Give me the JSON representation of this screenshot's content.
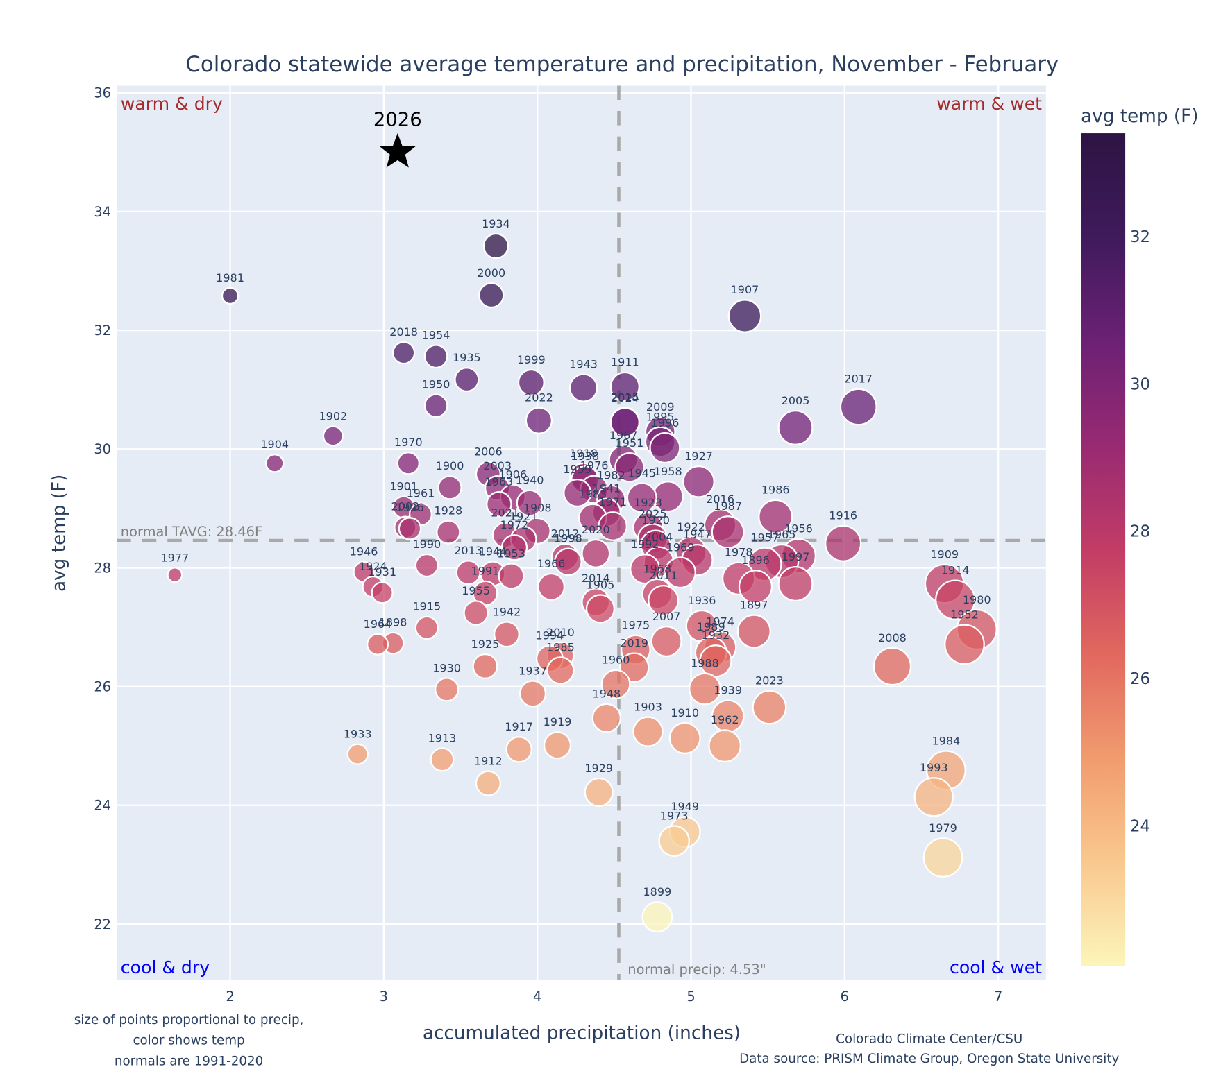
{
  "chart_data": {
    "type": "scatter",
    "title": "Colorado statewide average temperature and precipitation, November - February",
    "xlabel": "accumulated precipitation (inches)",
    "ylabel": "avg temp (F)",
    "xlim": [
      1.27,
      7.31
    ],
    "ylim": [
      21.0,
      36.1
    ],
    "xticks": [
      2,
      3,
      4,
      5,
      6,
      7
    ],
    "yticks": [
      22,
      24,
      26,
      28,
      30,
      32,
      34,
      36
    ],
    "grid": true,
    "size_encoding": "precip",
    "color_encoding": "temp",
    "colorbar": {
      "title": "avg temp (F)",
      "range": [
        22.1,
        33.4
      ],
      "ticks": [
        24,
        26,
        28,
        30,
        32
      ],
      "colorscale": [
        "#fcf5b9",
        "#f9c88f",
        "#f19b6f",
        "#e1685e",
        "#c23c66",
        "#982a72",
        "#6c2175",
        "#3f1a5c",
        "#2d1443"
      ]
    },
    "reference_lines": {
      "normal_temp": {
        "value": 28.46,
        "label": "normal TAVG: 28.46F"
      },
      "normal_precip": {
        "value": 4.53,
        "label": "normal precip: 4.53\""
      }
    },
    "quadrants": {
      "top_left": "warm & dry",
      "top_right": "warm & wet",
      "bottom_left": "cool & dry",
      "bottom_right": "cool & wet"
    },
    "highlight": {
      "year": "2026",
      "precip": 3.09,
      "temp": 35.0,
      "marker": "star"
    },
    "points": [
      {
        "year": "1977",
        "precip": 1.64,
        "temp": 27.88
      },
      {
        "year": "1981",
        "precip": 2.0,
        "temp": 32.58
      },
      {
        "year": "1904",
        "precip": 2.29,
        "temp": 29.76
      },
      {
        "year": "1902",
        "precip": 2.67,
        "temp": 30.22
      },
      {
        "year": "1933",
        "precip": 2.83,
        "temp": 24.86
      },
      {
        "year": "1946",
        "precip": 2.87,
        "temp": 27.93
      },
      {
        "year": "1924",
        "precip": 2.93,
        "temp": 27.68
      },
      {
        "year": "1964",
        "precip": 2.96,
        "temp": 26.71
      },
      {
        "year": "1931",
        "precip": 2.99,
        "temp": 27.58
      },
      {
        "year": "1898",
        "precip": 3.06,
        "temp": 26.73
      },
      {
        "year": "2018",
        "precip": 3.13,
        "temp": 31.62
      },
      {
        "year": "1901",
        "precip": 3.13,
        "temp": 29.02
      },
      {
        "year": "2002",
        "precip": 3.14,
        "temp": 28.68
      },
      {
        "year": "1926",
        "precip": 3.17,
        "temp": 28.66
      },
      {
        "year": "1970",
        "precip": 3.16,
        "temp": 29.76
      },
      {
        "year": "1961",
        "precip": 3.24,
        "temp": 28.9
      },
      {
        "year": "1990",
        "precip": 3.28,
        "temp": 28.04
      },
      {
        "year": "1915",
        "precip": 3.28,
        "temp": 26.99
      },
      {
        "year": "1954",
        "precip": 3.34,
        "temp": 31.56
      },
      {
        "year": "1950",
        "precip": 3.34,
        "temp": 30.73
      },
      {
        "year": "1913",
        "precip": 3.38,
        "temp": 24.77
      },
      {
        "year": "1930",
        "precip": 3.41,
        "temp": 25.95
      },
      {
        "year": "1928",
        "precip": 3.42,
        "temp": 28.6
      },
      {
        "year": "1900",
        "precip": 3.43,
        "temp": 29.35
      },
      {
        "year": "1935",
        "precip": 3.54,
        "temp": 31.17
      },
      {
        "year": "2013",
        "precip": 3.55,
        "temp": 27.92
      },
      {
        "year": "1955",
        "precip": 3.6,
        "temp": 27.24
      },
      {
        "year": "1925",
        "precip": 3.66,
        "temp": 26.34
      },
      {
        "year": "1991",
        "precip": 3.66,
        "temp": 27.57
      },
      {
        "year": "1912",
        "precip": 3.68,
        "temp": 24.37
      },
      {
        "year": "2006",
        "precip": 3.68,
        "temp": 29.58
      },
      {
        "year": "1934",
        "precip": 3.73,
        "temp": 33.42
      },
      {
        "year": "2000",
        "precip": 3.7,
        "temp": 32.59
      },
      {
        "year": "1944",
        "precip": 3.71,
        "temp": 27.9
      },
      {
        "year": "2003",
        "precip": 3.74,
        "temp": 29.34
      },
      {
        "year": "1963",
        "precip": 3.75,
        "temp": 29.07
      },
      {
        "year": "1942",
        "precip": 3.8,
        "temp": 26.88
      },
      {
        "year": "2021",
        "precip": 3.79,
        "temp": 28.55
      },
      {
        "year": "1953",
        "precip": 3.83,
        "temp": 27.86
      },
      {
        "year": "1906",
        "precip": 3.84,
        "temp": 29.19
      },
      {
        "year": "1972",
        "precip": 3.85,
        "temp": 28.34
      },
      {
        "year": "1917",
        "precip": 3.88,
        "temp": 24.94
      },
      {
        "year": "1921",
        "precip": 3.91,
        "temp": 28.48
      },
      {
        "year": "1940",
        "precip": 3.95,
        "temp": 29.09
      },
      {
        "year": "1999",
        "precip": 3.96,
        "temp": 31.12
      },
      {
        "year": "1937",
        "precip": 3.97,
        "temp": 25.88
      },
      {
        "year": "1908",
        "precip": 4.0,
        "temp": 28.62
      },
      {
        "year": "2022",
        "precip": 4.01,
        "temp": 30.48
      },
      {
        "year": "1994",
        "precip": 4.08,
        "temp": 26.47
      },
      {
        "year": "1966",
        "precip": 4.09,
        "temp": 27.68
      },
      {
        "year": "1919",
        "precip": 4.13,
        "temp": 25.01
      },
      {
        "year": "2010",
        "precip": 4.15,
        "temp": 26.52
      },
      {
        "year": "1985",
        "precip": 4.15,
        "temp": 26.27
      },
      {
        "year": "2012",
        "precip": 4.18,
        "temp": 28.18
      },
      {
        "year": "1998",
        "precip": 4.2,
        "temp": 28.1
      },
      {
        "year": "1959",
        "precip": 4.26,
        "temp": 29.26
      },
      {
        "year": "1918",
        "precip": 4.3,
        "temp": 29.53
      },
      {
        "year": "1938",
        "precip": 4.31,
        "temp": 29.48
      },
      {
        "year": "1943",
        "precip": 4.3,
        "temp": 31.03
      },
      {
        "year": "1983",
        "precip": 4.36,
        "temp": 28.84
      },
      {
        "year": "1976",
        "precip": 4.37,
        "temp": 29.32
      },
      {
        "year": "2014",
        "precip": 4.38,
        "temp": 27.42
      },
      {
        "year": "2020",
        "precip": 4.38,
        "temp": 28.24
      },
      {
        "year": "1905",
        "precip": 4.41,
        "temp": 27.31
      },
      {
        "year": "1929",
        "precip": 4.4,
        "temp": 24.22
      },
      {
        "year": "1948",
        "precip": 4.45,
        "temp": 25.47
      },
      {
        "year": "1941",
        "precip": 4.45,
        "temp": 28.93
      },
      {
        "year": "1982",
        "precip": 4.48,
        "temp": 29.15
      },
      {
        "year": "1971",
        "precip": 4.49,
        "temp": 28.7
      },
      {
        "year": "1960",
        "precip": 4.51,
        "temp": 26.04
      },
      {
        "year": "1967",
        "precip": 4.56,
        "temp": 29.82
      },
      {
        "year": "2015",
        "precip": 4.57,
        "temp": 30.46
      },
      {
        "year": "1911",
        "precip": 4.57,
        "temp": 31.05
      },
      {
        "year": "2024",
        "precip": 4.57,
        "temp": 30.45
      },
      {
        "year": "1951",
        "precip": 4.6,
        "temp": 29.69
      },
      {
        "year": "1975",
        "precip": 4.64,
        "temp": 26.62
      },
      {
        "year": "2019",
        "precip": 4.63,
        "temp": 26.32
      },
      {
        "year": "1945",
        "precip": 4.68,
        "temp": 29.18
      },
      {
        "year": "1903",
        "precip": 4.72,
        "temp": 25.24
      },
      {
        "year": "1923",
        "precip": 4.72,
        "temp": 28.68
      },
      {
        "year": "1992",
        "precip": 4.7,
        "temp": 27.98
      },
      {
        "year": "2025",
        "precip": 4.75,
        "temp": 28.49
      },
      {
        "year": "1920",
        "precip": 4.77,
        "temp": 28.38
      },
      {
        "year": "2004",
        "precip": 4.79,
        "temp": 28.1
      },
      {
        "year": "1968",
        "precip": 4.78,
        "temp": 27.56
      },
      {
        "year": "2011",
        "precip": 4.82,
        "temp": 27.45
      },
      {
        "year": "1899",
        "precip": 4.78,
        "temp": 22.12
      },
      {
        "year": "2009",
        "precip": 4.8,
        "temp": 30.29
      },
      {
        "year": "1995",
        "precip": 4.8,
        "temp": 30.12
      },
      {
        "year": "1996",
        "precip": 4.83,
        "temp": 30.02
      },
      {
        "year": "2007",
        "precip": 4.84,
        "temp": 26.76
      },
      {
        "year": "1958",
        "precip": 4.85,
        "temp": 29.2
      },
      {
        "year": "1973",
        "precip": 4.89,
        "temp": 23.4
      },
      {
        "year": "1969",
        "precip": 4.93,
        "temp": 27.92
      },
      {
        "year": "1910",
        "precip": 4.96,
        "temp": 25.13
      },
      {
        "year": "1949",
        "precip": 4.96,
        "temp": 23.55
      },
      {
        "year": "1922",
        "precip": 5.0,
        "temp": 28.26
      },
      {
        "year": "1947",
        "precip": 5.04,
        "temp": 28.13
      },
      {
        "year": "1936",
        "precip": 5.07,
        "temp": 27.02
      },
      {
        "year": "1927",
        "precip": 5.05,
        "temp": 29.45
      },
      {
        "year": "1988",
        "precip": 5.09,
        "temp": 25.96
      },
      {
        "year": "1989",
        "precip": 5.13,
        "temp": 26.57
      },
      {
        "year": "1932",
        "precip": 5.16,
        "temp": 26.43
      },
      {
        "year": "1974",
        "precip": 5.19,
        "temp": 26.66
      },
      {
        "year": "2016",
        "precip": 5.19,
        "temp": 28.72
      },
      {
        "year": "1987",
        "precip": 5.24,
        "temp": 28.6
      },
      {
        "year": "1939",
        "precip": 5.24,
        "temp": 25.5
      },
      {
        "year": "1962",
        "precip": 5.22,
        "temp": 25.0
      },
      {
        "year": "1978",
        "precip": 5.31,
        "temp": 27.82
      },
      {
        "year": "1896",
        "precip": 5.42,
        "temp": 27.68
      },
      {
        "year": "1897",
        "precip": 5.41,
        "temp": 26.93
      },
      {
        "year": "2023",
        "precip": 5.51,
        "temp": 25.65
      },
      {
        "year": "1957",
        "precip": 5.48,
        "temp": 28.06
      },
      {
        "year": "1986",
        "precip": 5.55,
        "temp": 28.86
      },
      {
        "year": "1965",
        "precip": 5.59,
        "temp": 28.11
      },
      {
        "year": "1956",
        "precip": 5.7,
        "temp": 28.2
      },
      {
        "year": "1997",
        "precip": 5.68,
        "temp": 27.73
      },
      {
        "year": "2005",
        "precip": 5.68,
        "temp": 30.36
      },
      {
        "year": "1907",
        "precip": 5.35,
        "temp": 32.24
      },
      {
        "year": "1916",
        "precip": 5.99,
        "temp": 28.41
      },
      {
        "year": "2017",
        "precip": 6.09,
        "temp": 30.71
      },
      {
        "year": "2008",
        "precip": 6.31,
        "temp": 26.34
      },
      {
        "year": "1993",
        "precip": 6.58,
        "temp": 24.14
      },
      {
        "year": "1909",
        "precip": 6.65,
        "temp": 27.73
      },
      {
        "year": "1984",
        "precip": 6.66,
        "temp": 24.59
      },
      {
        "year": "1979",
        "precip": 6.64,
        "temp": 23.12
      },
      {
        "year": "1914",
        "precip": 6.72,
        "temp": 27.46
      },
      {
        "year": "1952",
        "precip": 6.78,
        "temp": 26.71
      },
      {
        "year": "1980",
        "precip": 6.86,
        "temp": 26.96
      }
    ]
  },
  "footnotes": {
    "left": [
      "size of points proportional to precip,",
      "color shows temp",
      "normals are 1991-2020"
    ],
    "right": [
      "Colorado Climate Center/CSU",
      "Data source: PRISM Climate Group, Oregon State University"
    ]
  }
}
